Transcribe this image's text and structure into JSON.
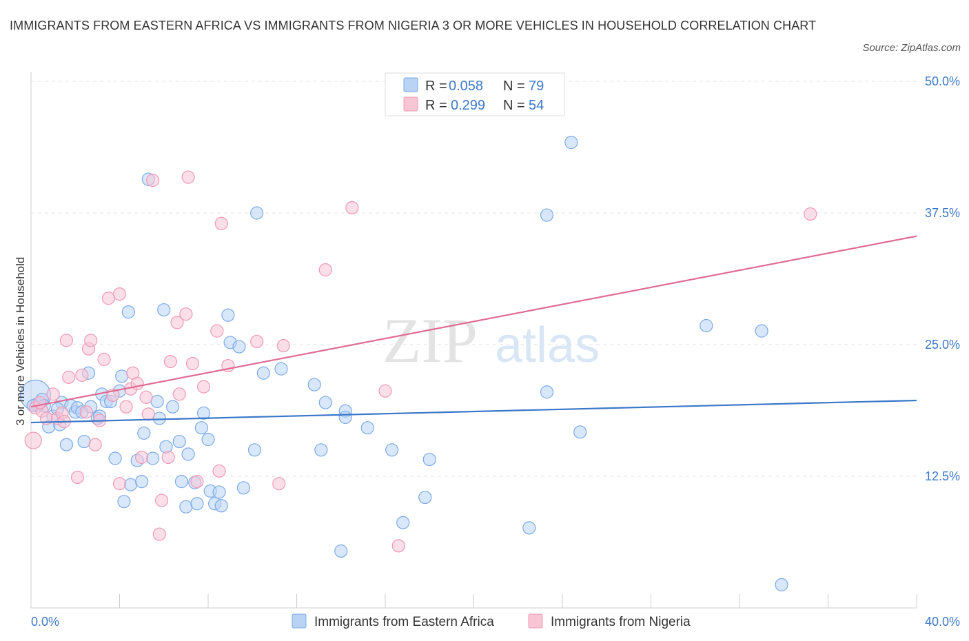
{
  "title": "IMMIGRANTS FROM EASTERN AFRICA VS IMMIGRANTS FROM NIGERIA 3 OR MORE VEHICLES IN HOUSEHOLD CORRELATION CHART",
  "source": "Source: ZipAtlas.com",
  "watermark": {
    "zip": "ZIP",
    "atlas": "atlas"
  },
  "legend": {
    "r_label": "R =",
    "n_label": "N =",
    "rows": [
      {
        "r": "0.058",
        "n": "79",
        "color": "#7aaae8",
        "fill": "#b9d3f5"
      },
      {
        "r": "0.299",
        "n": "54",
        "color": "#f098b4",
        "fill": "#f8c5d5"
      }
    ]
  },
  "chart_data": {
    "type": "scatter",
    "title": "IMMIGRANTS FROM EASTERN AFRICA VS IMMIGRANTS FROM NIGERIA 3 OR MORE VEHICLES IN HOUSEHOLD CORRELATION CHART",
    "xlabel": "",
    "ylabel": "3 or more Vehicles in Household",
    "xlim": [
      0,
      40
    ],
    "ylim": [
      0,
      50
    ],
    "x_ticks": [
      "0.0%",
      "40.0%"
    ],
    "y_ticks": [
      {
        "value": 50,
        "label": "50.0%"
      },
      {
        "value": 37.5,
        "label": "37.5%"
      },
      {
        "value": 25,
        "label": "25.0%"
      },
      {
        "value": 12.5,
        "label": "12.5%"
      }
    ],
    "grid": true,
    "legend_position": "top-center",
    "series": [
      {
        "name": "Immigrants from Eastern Africa",
        "color": "#3a78c9",
        "fill": "#b9d3f5",
        "stroke": "#7aaae8",
        "trend": {
          "x": [
            0,
            40
          ],
          "y": [
            17.6,
            19.7
          ]
        },
        "points": [
          [
            0.2,
            20.2,
            22
          ],
          [
            0.3,
            19.3,
            10
          ],
          [
            0.5,
            19.8,
            9
          ],
          [
            0.6,
            19.2,
            9
          ],
          [
            0.8,
            17.2,
            9
          ],
          [
            1.0,
            18.2,
            9
          ],
          [
            1.3,
            17.4,
            9
          ],
          [
            1.4,
            19.5,
            9
          ],
          [
            1.6,
            15.5,
            9
          ],
          [
            1.8,
            19.2,
            9
          ],
          [
            2.0,
            18.6,
            9
          ],
          [
            2.1,
            19.0,
            9
          ],
          [
            2.3,
            18.6,
            9
          ],
          [
            2.4,
            15.8,
            9
          ],
          [
            2.6,
            22.3,
            9
          ],
          [
            2.7,
            19.1,
            9
          ],
          [
            3.0,
            18.0,
            9
          ],
          [
            3.1,
            18.2,
            9
          ],
          [
            3.2,
            20.3,
            9
          ],
          [
            3.4,
            19.6,
            9
          ],
          [
            3.6,
            19.6,
            9
          ],
          [
            3.8,
            14.2,
            9
          ],
          [
            4.0,
            20.6,
            9
          ],
          [
            4.1,
            22.0,
            9
          ],
          [
            4.2,
            10.1,
            9
          ],
          [
            4.4,
            28.1,
            9
          ],
          [
            4.5,
            11.7,
            9
          ],
          [
            4.8,
            14.0,
            9
          ],
          [
            5.0,
            12.0,
            9
          ],
          [
            5.1,
            16.6,
            9
          ],
          [
            5.3,
            40.7,
            9
          ],
          [
            5.5,
            14.2,
            9
          ],
          [
            5.7,
            19.6,
            9
          ],
          [
            5.8,
            18.0,
            9
          ],
          [
            6.0,
            28.3,
            9
          ],
          [
            6.1,
            15.3,
            9
          ],
          [
            6.4,
            19.1,
            9
          ],
          [
            6.7,
            15.8,
            9
          ],
          [
            6.8,
            12.0,
            9
          ],
          [
            7.0,
            9.6,
            9
          ],
          [
            7.1,
            14.6,
            9
          ],
          [
            7.4,
            11.9,
            9
          ],
          [
            7.5,
            9.9,
            9
          ],
          [
            7.7,
            17.1,
            9
          ],
          [
            7.8,
            18.5,
            9
          ],
          [
            8.0,
            16.0,
            9
          ],
          [
            8.1,
            11.1,
            9
          ],
          [
            8.3,
            9.9,
            9
          ],
          [
            8.5,
            11.0,
            9
          ],
          [
            8.6,
            9.7,
            9
          ],
          [
            8.9,
            27.8,
            9
          ],
          [
            9.0,
            25.2,
            9
          ],
          [
            9.4,
            24.8,
            9
          ],
          [
            9.6,
            11.4,
            9
          ],
          [
            10.1,
            15.0,
            9
          ],
          [
            10.2,
            37.5,
            9
          ],
          [
            10.5,
            22.3,
            9
          ],
          [
            11.3,
            22.7,
            9
          ],
          [
            12.8,
            21.2,
            9
          ],
          [
            13.1,
            15.0,
            9
          ],
          [
            13.3,
            19.5,
            9
          ],
          [
            14.0,
            5.4,
            9
          ],
          [
            14.2,
            18.7,
            9
          ],
          [
            14.2,
            18.1,
            9
          ],
          [
            15.2,
            17.1,
            9
          ],
          [
            16.3,
            15.0,
            9
          ],
          [
            16.8,
            8.1,
            9
          ],
          [
            17.8,
            10.5,
            9
          ],
          [
            18.0,
            14.1,
            9
          ],
          [
            22.5,
            7.6,
            9
          ],
          [
            23.3,
            20.5,
            9
          ],
          [
            23.3,
            37.3,
            9
          ],
          [
            24.4,
            44.2,
            9
          ],
          [
            24.8,
            16.7,
            9
          ],
          [
            30.5,
            26.8,
            9
          ],
          [
            33.0,
            26.3,
            9
          ],
          [
            33.9,
            2.2,
            9
          ],
          [
            0.1,
            19.2,
            9
          ],
          [
            1.2,
            18.9,
            9
          ]
        ]
      },
      {
        "name": "Immigrants from Nigeria",
        "color": "#e06b93",
        "fill": "#f8c5d5",
        "stroke": "#f098b4",
        "trend": {
          "x": [
            0,
            40
          ],
          "y": [
            19.1,
            35.3
          ]
        },
        "points": [
          [
            0.1,
            15.9,
            12
          ],
          [
            0.2,
            19.0,
            9
          ],
          [
            0.5,
            18.7,
            9
          ],
          [
            0.7,
            18.0,
            9
          ],
          [
            1.0,
            20.3,
            9
          ],
          [
            1.2,
            18.0,
            9
          ],
          [
            1.4,
            18.5,
            9
          ],
          [
            1.6,
            25.4,
            9
          ],
          [
            1.7,
            21.9,
            9
          ],
          [
            2.1,
            12.4,
            9
          ],
          [
            2.3,
            22.1,
            9
          ],
          [
            2.6,
            24.6,
            9
          ],
          [
            2.7,
            25.4,
            9
          ],
          [
            2.9,
            15.5,
            9
          ],
          [
            3.1,
            17.8,
            9
          ],
          [
            3.3,
            23.6,
            9
          ],
          [
            3.5,
            29.4,
            9
          ],
          [
            3.7,
            20.2,
            9
          ],
          [
            4.0,
            29.8,
            9
          ],
          [
            4.0,
            11.8,
            9
          ],
          [
            4.3,
            19.1,
            9
          ],
          [
            4.5,
            20.8,
            9
          ],
          [
            4.6,
            22.3,
            9
          ],
          [
            4.8,
            21.3,
            9
          ],
          [
            5.0,
            14.3,
            9
          ],
          [
            5.2,
            20.0,
            9
          ],
          [
            5.3,
            18.4,
            9
          ],
          [
            5.5,
            40.6,
            9
          ],
          [
            5.8,
            7.0,
            9
          ],
          [
            5.9,
            10.2,
            9
          ],
          [
            6.2,
            14.3,
            9
          ],
          [
            6.3,
            23.4,
            9
          ],
          [
            6.6,
            27.1,
            9
          ],
          [
            6.7,
            20.3,
            9
          ],
          [
            7.0,
            27.9,
            9
          ],
          [
            7.1,
            40.9,
            9
          ],
          [
            7.3,
            23.2,
            9
          ],
          [
            7.5,
            12.0,
            9
          ],
          [
            7.8,
            21.0,
            9
          ],
          [
            8.4,
            26.3,
            9
          ],
          [
            8.5,
            13.0,
            9
          ],
          [
            8.6,
            36.5,
            9
          ],
          [
            8.9,
            23.0,
            9
          ],
          [
            10.2,
            25.3,
            9
          ],
          [
            11.2,
            11.8,
            9
          ],
          [
            11.4,
            24.9,
            9
          ],
          [
            13.3,
            32.1,
            9
          ],
          [
            14.5,
            38.0,
            9
          ],
          [
            16.0,
            20.6,
            9
          ],
          [
            16.6,
            5.9,
            9
          ],
          [
            35.2,
            37.4,
            9
          ],
          [
            0.4,
            19.5,
            9
          ],
          [
            1.5,
            17.7,
            9
          ],
          [
            2.5,
            18.6,
            9
          ]
        ]
      }
    ]
  }
}
